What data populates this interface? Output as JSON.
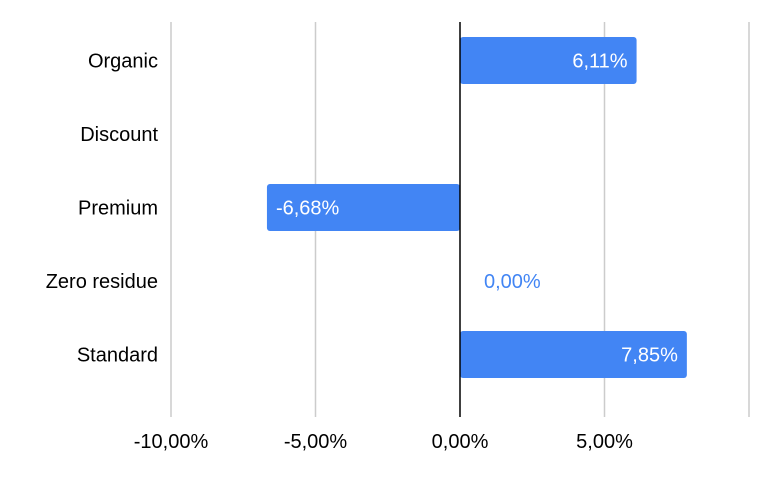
{
  "chart_data": {
    "type": "bar",
    "orientation": "horizontal",
    "categories": [
      "Organic",
      "Discount",
      "Premium",
      "Zero residue",
      "Standard"
    ],
    "values": [
      6.11,
      null,
      -6.68,
      0.0,
      7.85
    ],
    "value_labels": [
      "6,11%",
      "",
      "-6,68%",
      "0,00%",
      "7,85%"
    ],
    "x_ticks": [
      -10,
      -5,
      0,
      5
    ],
    "x_tick_labels": [
      "-10,00%",
      "-5,00%",
      "0,00%",
      "5,00%"
    ],
    "xlim": [
      -10,
      10
    ],
    "grid": true,
    "legend": "none",
    "title": "",
    "xlabel": "",
    "ylabel": "",
    "colors": {
      "bar": "#4285f4",
      "label_inside": "#ffffff",
      "label_outside": "#4285f4",
      "grid": "#cccccc",
      "zero_line": "#000000",
      "text": "#000000"
    }
  }
}
